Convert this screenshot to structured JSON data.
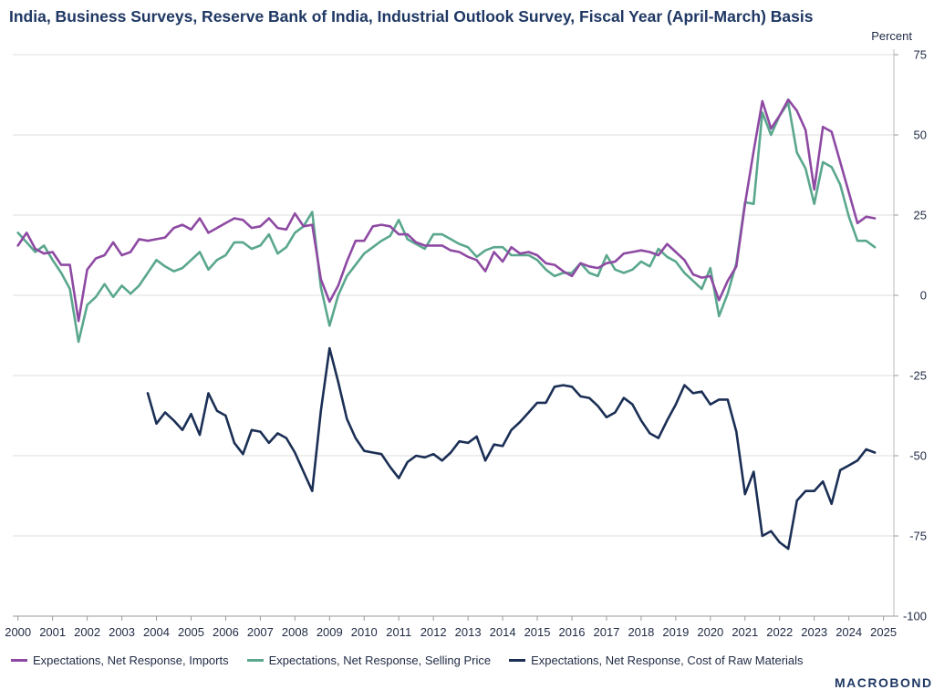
{
  "chart_data": {
    "type": "line",
    "title": "India, Business Surveys, Reserve Bank of India, Industrial Outlook Survey, Fiscal Year (April-March) Basis",
    "ylabel": "Percent",
    "ylim": [
      -100,
      75
    ],
    "yticks": [
      75,
      50,
      25,
      0,
      -25,
      -50,
      -75,
      -100
    ],
    "xlim": [
      1999.85,
      2025.3
    ],
    "xticks": [
      2000,
      2001,
      2002,
      2003,
      2004,
      2005,
      2006,
      2007,
      2008,
      2009,
      2010,
      2011,
      2012,
      2013,
      2014,
      2015,
      2016,
      2017,
      2018,
      2019,
      2020,
      2021,
      2022,
      2023,
      2024,
      2025
    ],
    "grid": true,
    "legend_position": "bottom",
    "series": [
      {
        "name": "Expectations, Net Response, Imports",
        "color": "#8e4aa3",
        "points": [
          [
            2000.0,
            15.5
          ],
          [
            2000.25,
            19.5
          ],
          [
            2000.5,
            14.5
          ],
          [
            2000.75,
            13
          ],
          [
            2001.0,
            13.5
          ],
          [
            2001.25,
            9.5
          ],
          [
            2001.5,
            9.5
          ],
          [
            2001.75,
            -8
          ],
          [
            2002.0,
            8
          ],
          [
            2002.25,
            11.5
          ],
          [
            2002.5,
            12.5
          ],
          [
            2002.75,
            16.5
          ],
          [
            2003.0,
            12.5
          ],
          [
            2003.25,
            13.5
          ],
          [
            2003.5,
            17.5
          ],
          [
            2003.75,
            17
          ],
          [
            2004.0,
            17.5
          ],
          [
            2004.25,
            18
          ],
          [
            2004.5,
            21
          ],
          [
            2004.75,
            22
          ],
          [
            2005.0,
            20.5
          ],
          [
            2005.25,
            24
          ],
          [
            2005.5,
            19.5
          ],
          [
            2005.75,
            21
          ],
          [
            2006.0,
            22.5
          ],
          [
            2006.25,
            24
          ],
          [
            2006.5,
            23.5
          ],
          [
            2006.75,
            21
          ],
          [
            2007.0,
            21.5
          ],
          [
            2007.25,
            24
          ],
          [
            2007.5,
            21
          ],
          [
            2007.75,
            20.5
          ],
          [
            2008.0,
            25.5
          ],
          [
            2008.25,
            21.5
          ],
          [
            2008.5,
            22
          ],
          [
            2008.75,
            5
          ],
          [
            2009.0,
            -2
          ],
          [
            2009.25,
            3
          ],
          [
            2009.5,
            10.5
          ],
          [
            2009.75,
            17
          ],
          [
            2010.0,
            17
          ],
          [
            2010.25,
            21.5
          ],
          [
            2010.5,
            22
          ],
          [
            2010.75,
            21.5
          ],
          [
            2011.0,
            19
          ],
          [
            2011.25,
            19
          ],
          [
            2011.5,
            16.5
          ],
          [
            2011.75,
            15.5
          ],
          [
            2012.0,
            15.5
          ],
          [
            2012.25,
            15.5
          ],
          [
            2012.5,
            14
          ],
          [
            2012.75,
            13.5
          ],
          [
            2013.0,
            12
          ],
          [
            2013.25,
            11
          ],
          [
            2013.5,
            7.5
          ],
          [
            2013.75,
            13.5
          ],
          [
            2014.0,
            10.5
          ],
          [
            2014.25,
            15
          ],
          [
            2014.5,
            13
          ],
          [
            2014.75,
            13.5
          ],
          [
            2015.0,
            12.5
          ],
          [
            2015.25,
            10
          ],
          [
            2015.5,
            9.5
          ],
          [
            2015.75,
            7.5
          ],
          [
            2016.0,
            6
          ],
          [
            2016.25,
            10
          ],
          [
            2016.5,
            9
          ],
          [
            2016.75,
            8.5
          ],
          [
            2017.0,
            10
          ],
          [
            2017.25,
            10.5
          ],
          [
            2017.5,
            13
          ],
          [
            2017.75,
            13.5
          ],
          [
            2018.0,
            14
          ],
          [
            2018.25,
            13.5
          ],
          [
            2018.5,
            12.5
          ],
          [
            2018.75,
            16
          ],
          [
            2019.0,
            13.5
          ],
          [
            2019.25,
            11
          ],
          [
            2019.5,
            6.5
          ],
          [
            2019.75,
            5.5
          ],
          [
            2020.0,
            6
          ],
          [
            2020.25,
            -1.5
          ],
          [
            2020.5,
            4.5
          ],
          [
            2020.75,
            9
          ],
          [
            2021.0,
            28.5
          ],
          [
            2021.25,
            45
          ],
          [
            2021.5,
            60.5
          ],
          [
            2021.75,
            52
          ],
          [
            2022.0,
            56
          ],
          [
            2022.25,
            61
          ],
          [
            2022.5,
            57.5
          ],
          [
            2022.75,
            51.5
          ],
          [
            2023.0,
            33
          ],
          [
            2023.25,
            52.5
          ],
          [
            2023.5,
            51
          ],
          [
            2023.75,
            41.5
          ],
          [
            2024.0,
            32
          ],
          [
            2024.25,
            22.5
          ],
          [
            2024.5,
            24.5
          ],
          [
            2024.75,
            24
          ]
        ]
      },
      {
        "name": "Expectations, Net Response, Selling Price",
        "color": "#5aa78e",
        "points": [
          [
            2000.0,
            19.5
          ],
          [
            2000.25,
            16.5
          ],
          [
            2000.5,
            13.5
          ],
          [
            2000.75,
            15.5
          ],
          [
            2001.0,
            11
          ],
          [
            2001.25,
            7
          ],
          [
            2001.5,
            2
          ],
          [
            2001.75,
            -14.5
          ],
          [
            2002.0,
            -3
          ],
          [
            2002.25,
            -0.5
          ],
          [
            2002.5,
            3.5
          ],
          [
            2002.75,
            -0.5
          ],
          [
            2003.0,
            3
          ],
          [
            2003.25,
            0.5
          ],
          [
            2003.5,
            3
          ],
          [
            2003.75,
            7
          ],
          [
            2004.0,
            11
          ],
          [
            2004.25,
            9
          ],
          [
            2004.5,
            7.5
          ],
          [
            2004.75,
            8.5
          ],
          [
            2005.0,
            11
          ],
          [
            2005.25,
            13.5
          ],
          [
            2005.5,
            8
          ],
          [
            2005.75,
            11
          ],
          [
            2006.0,
            12.5
          ],
          [
            2006.25,
            16.5
          ],
          [
            2006.5,
            16.5
          ],
          [
            2006.75,
            14.5
          ],
          [
            2007.0,
            15.5
          ],
          [
            2007.25,
            19
          ],
          [
            2007.5,
            13
          ],
          [
            2007.75,
            15
          ],
          [
            2008.0,
            19.5
          ],
          [
            2008.25,
            21.5
          ],
          [
            2008.5,
            26
          ],
          [
            2008.75,
            2.5
          ],
          [
            2009.0,
            -9.5
          ],
          [
            2009.25,
            0
          ],
          [
            2009.5,
            6
          ],
          [
            2009.75,
            9.5
          ],
          [
            2010.0,
            13
          ],
          [
            2010.25,
            15
          ],
          [
            2010.5,
            17
          ],
          [
            2010.75,
            18.5
          ],
          [
            2011.0,
            23.5
          ],
          [
            2011.25,
            17.5
          ],
          [
            2011.5,
            16
          ],
          [
            2011.75,
            14.5
          ],
          [
            2012.0,
            19
          ],
          [
            2012.25,
            19
          ],
          [
            2012.5,
            17.5
          ],
          [
            2012.75,
            16
          ],
          [
            2013.0,
            15
          ],
          [
            2013.25,
            12
          ],
          [
            2013.5,
            14
          ],
          [
            2013.75,
            15
          ],
          [
            2014.0,
            15
          ],
          [
            2014.25,
            12.5
          ],
          [
            2014.5,
            12.5
          ],
          [
            2014.75,
            12.5
          ],
          [
            2015.0,
            11
          ],
          [
            2015.25,
            8
          ],
          [
            2015.5,
            6
          ],
          [
            2015.75,
            7
          ],
          [
            2016.0,
            7
          ],
          [
            2016.25,
            10
          ],
          [
            2016.5,
            7
          ],
          [
            2016.75,
            6
          ],
          [
            2017.0,
            12.5
          ],
          [
            2017.25,
            8
          ],
          [
            2017.5,
            7
          ],
          [
            2017.75,
            8
          ],
          [
            2018.0,
            10.5
          ],
          [
            2018.25,
            9
          ],
          [
            2018.5,
            14.5
          ],
          [
            2018.75,
            12
          ],
          [
            2019.0,
            10.5
          ],
          [
            2019.25,
            7
          ],
          [
            2019.5,
            4.5
          ],
          [
            2019.75,
            2
          ],
          [
            2020.0,
            8.5
          ],
          [
            2020.25,
            -6.5
          ],
          [
            2020.5,
            0.5
          ],
          [
            2020.75,
            10
          ],
          [
            2021.0,
            29
          ],
          [
            2021.25,
            28.5
          ],
          [
            2021.5,
            57
          ],
          [
            2021.75,
            50
          ],
          [
            2022.0,
            56
          ],
          [
            2022.25,
            60
          ],
          [
            2022.5,
            44.5
          ],
          [
            2022.75,
            39.5
          ],
          [
            2023.0,
            28.5
          ],
          [
            2023.25,
            41.5
          ],
          [
            2023.5,
            40
          ],
          [
            2023.75,
            34.5
          ],
          [
            2024.0,
            24.5
          ],
          [
            2024.25,
            17
          ],
          [
            2024.5,
            17
          ],
          [
            2024.75,
            15
          ]
        ]
      },
      {
        "name": "Expectations, Net Response, Cost of Raw Materials",
        "color": "#1b2f55",
        "points": [
          [
            2003.75,
            -30.5
          ],
          [
            2004.0,
            -40
          ],
          [
            2004.25,
            -36.5
          ],
          [
            2004.5,
            -39
          ],
          [
            2004.75,
            -42
          ],
          [
            2005.0,
            -37
          ],
          [
            2005.25,
            -43.5
          ],
          [
            2005.5,
            -30.5
          ],
          [
            2005.75,
            -36
          ],
          [
            2006.0,
            -37.5
          ],
          [
            2006.25,
            -46
          ],
          [
            2006.5,
            -49.5
          ],
          [
            2006.75,
            -42
          ],
          [
            2007.0,
            -42.5
          ],
          [
            2007.25,
            -46
          ],
          [
            2007.5,
            -43
          ],
          [
            2007.75,
            -44.5
          ],
          [
            2008.0,
            -49
          ],
          [
            2008.25,
            -55
          ],
          [
            2008.5,
            -61
          ],
          [
            2008.75,
            -36
          ],
          [
            2009.0,
            -16.5
          ],
          [
            2009.25,
            -27
          ],
          [
            2009.5,
            -38.5
          ],
          [
            2009.75,
            -44.5
          ],
          [
            2010.0,
            -48.5
          ],
          [
            2010.25,
            -49
          ],
          [
            2010.5,
            -49.5
          ],
          [
            2010.75,
            -53.5
          ],
          [
            2011.0,
            -57
          ],
          [
            2011.25,
            -52
          ],
          [
            2011.5,
            -50
          ],
          [
            2011.75,
            -50.5
          ],
          [
            2012.0,
            -49.5
          ],
          [
            2012.25,
            -51.5
          ],
          [
            2012.5,
            -49
          ],
          [
            2012.75,
            -45.5
          ],
          [
            2013.0,
            -46
          ],
          [
            2013.25,
            -44
          ],
          [
            2013.5,
            -51.5
          ],
          [
            2013.75,
            -46.5
          ],
          [
            2014.0,
            -47
          ],
          [
            2014.25,
            -42
          ],
          [
            2014.5,
            -39.5
          ],
          [
            2014.75,
            -36.5
          ],
          [
            2015.0,
            -33.5
          ],
          [
            2015.25,
            -33.5
          ],
          [
            2015.5,
            -28.5
          ],
          [
            2015.75,
            -28
          ],
          [
            2016.0,
            -28.5
          ],
          [
            2016.25,
            -31.5
          ],
          [
            2016.5,
            -32
          ],
          [
            2016.75,
            -34.5
          ],
          [
            2017.0,
            -38
          ],
          [
            2017.25,
            -36.5
          ],
          [
            2017.5,
            -32
          ],
          [
            2017.75,
            -34
          ],
          [
            2018.0,
            -39
          ],
          [
            2018.25,
            -43
          ],
          [
            2018.5,
            -44.5
          ],
          [
            2018.75,
            -39
          ],
          [
            2019.0,
            -34
          ],
          [
            2019.25,
            -28
          ],
          [
            2019.5,
            -30.5
          ],
          [
            2019.75,
            -30
          ],
          [
            2020.0,
            -34
          ],
          [
            2020.25,
            -32.5
          ],
          [
            2020.5,
            -32.5
          ],
          [
            2020.75,
            -42.5
          ],
          [
            2021.0,
            -62
          ],
          [
            2021.25,
            -55
          ],
          [
            2021.5,
            -75
          ],
          [
            2021.75,
            -73.5
          ],
          [
            2022.0,
            -77
          ],
          [
            2022.25,
            -79
          ],
          [
            2022.5,
            -64
          ],
          [
            2022.75,
            -61
          ],
          [
            2023.0,
            -61
          ],
          [
            2023.25,
            -58
          ],
          [
            2023.5,
            -65
          ],
          [
            2023.75,
            -54.5
          ],
          [
            2024.0,
            -53
          ],
          [
            2024.25,
            -51.5
          ],
          [
            2024.5,
            -48
          ],
          [
            2024.75,
            -49
          ]
        ]
      }
    ]
  },
  "logo_text": "MACROBOND"
}
